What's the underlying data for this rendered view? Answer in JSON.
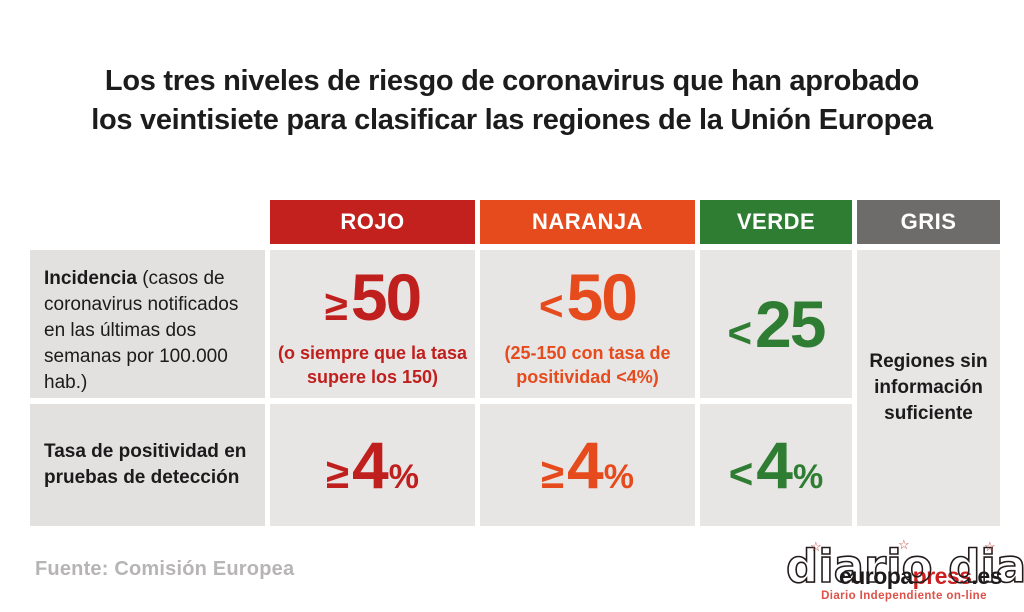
{
  "title": {
    "line1": "Los tres niveles de riesgo de coronavirus que han aprobado",
    "line2": "los veintisiete para clasificar las regiones de la Unión Europea"
  },
  "colors": {
    "red": "#c0201d",
    "orange": "#e64b1d",
    "green": "#2e7d32",
    "gray": "#6e6b6b",
    "cell_background": "#e8e5e5"
  },
  "table": {
    "headers": {
      "rojo": "ROJO",
      "naranja": "NARANJA",
      "verde": "VERDE",
      "gris": "GRIS"
    },
    "row_incidencia": {
      "label_title": "Incidencia",
      "label_detail": "(casos de coronavirus notificados en las últimas dos semanas por 100.000 hab.)",
      "rojo": {
        "symbol": "≥",
        "value": "50",
        "note": "(o siempre que la tasa supere los 150)"
      },
      "naranja": {
        "symbol": "<",
        "value": "50",
        "note": "(25-150 con tasa de positividad <4%)"
      },
      "verde": {
        "symbol": "<",
        "value": "25"
      }
    },
    "row_positividad": {
      "label_title": "Tasa de positividad en pruebas de detección",
      "rojo": {
        "symbol": "≥",
        "value": "4",
        "unit": "%"
      },
      "naranja": {
        "symbol": "≥",
        "value": "4",
        "unit": "%"
      },
      "verde": {
        "symbol": "<",
        "value": "4",
        "unit": "%"
      }
    },
    "gris_cell": "Regiones sin información suficiente"
  },
  "footer": {
    "source": "Fuente: Comisión Europea"
  },
  "logos": {
    "europapress": {
      "part1": "europa",
      "part2": "press",
      "part3": ".es"
    },
    "diario": {
      "wordmark": "diario dia",
      "subtitle": "Diario Independiente on-line",
      "star": "☆"
    }
  },
  "chart_data": {
    "type": "table",
    "title": "Los tres niveles de riesgo de coronavirus que han aprobado los veintisiete para clasificar las regiones de la Unión Europea",
    "columns": [
      "",
      "ROJO",
      "NARANJA",
      "VERDE",
      "GRIS"
    ],
    "rows": [
      [
        "Incidencia (casos de coronavirus notificados en las últimas dos semanas por 100.000 hab.)",
        "≥50 (o siempre que la tasa supere los 150)",
        "<50 (25-150 con tasa de positividad <4%)",
        "<25",
        "Regiones sin información suficiente"
      ],
      [
        "Tasa de positividad en pruebas de detección",
        "≥4%",
        "≥4%",
        "<4%",
        "Regiones sin información suficiente"
      ]
    ],
    "column_colors": {
      "ROJO": "#c2211e",
      "NARANJA": "#e64b1d",
      "VERDE": "#2e7d32",
      "GRIS": "#6e6b6b"
    },
    "source": "Fuente: Comisión Europea",
    "legend_position": "none",
    "grid": false
  }
}
